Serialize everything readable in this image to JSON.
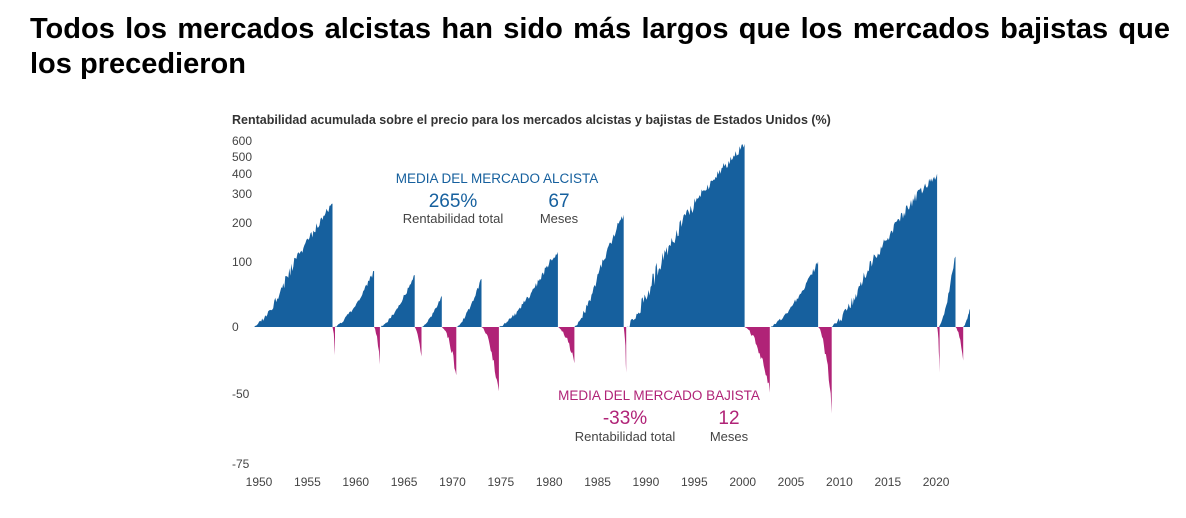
{
  "headline": "Todos los mercados alcistas han sido más largos que los mercados bajistas que los precedieron",
  "chart_data": {
    "type": "area",
    "title": "Rentabilidad acumulada sobre el precio para los mercados alcistas y bajistas de Estados Unidos (%)",
    "y_scale": "non-linear (compressed upper range)",
    "y_ticks": [
      600,
      500,
      400,
      300,
      200,
      100,
      0,
      -50,
      -75
    ],
    "x_ticks": [
      1950,
      1955,
      1960,
      1965,
      1970,
      1975,
      1980,
      1985,
      1990,
      1995,
      2000,
      2005,
      2010,
      2015,
      2020
    ],
    "xlim": [
      1950,
      2023.5
    ],
    "ylim": [
      -75,
      600
    ],
    "colors": {
      "bull": "#16609e",
      "bear": "#b02377"
    },
    "bull_markets": [
      {
        "start": 1949.5,
        "end": 1957.6,
        "peak": 267
      },
      {
        "start": 1957.8,
        "end": 1961.9,
        "peak": 86
      },
      {
        "start": 1962.5,
        "end": 1966.1,
        "peak": 80
      },
      {
        "start": 1966.8,
        "end": 1968.9,
        "peak": 48
      },
      {
        "start": 1970.4,
        "end": 1973.0,
        "peak": 74
      },
      {
        "start": 1974.8,
        "end": 1980.9,
        "peak": 126
      },
      {
        "start": 1982.6,
        "end": 1987.7,
        "peak": 229
      },
      {
        "start": 1987.9,
        "end": 2000.2,
        "peak": 582
      },
      {
        "start": 2002.8,
        "end": 2007.8,
        "peak": 101
      },
      {
        "start": 2009.2,
        "end": 2020.1,
        "peak": 401
      },
      {
        "start": 2020.3,
        "end": 2022.0,
        "peak": 114
      },
      {
        "start": 2022.8,
        "end": 2023.5,
        "peak": 28
      }
    ],
    "bear_markets": [
      {
        "start": 1957.6,
        "end": 1957.8,
        "trough": -21
      },
      {
        "start": 1961.9,
        "end": 1962.5,
        "trough": -28
      },
      {
        "start": 1966.1,
        "end": 1966.8,
        "trough": -22
      },
      {
        "start": 1968.9,
        "end": 1970.4,
        "trough": -36
      },
      {
        "start": 1973.0,
        "end": 1974.8,
        "trough": -48
      },
      {
        "start": 1980.9,
        "end": 1982.6,
        "trough": -27
      },
      {
        "start": 1987.7,
        "end": 1987.9,
        "trough": -34
      },
      {
        "start": 2000.2,
        "end": 2002.8,
        "trough": -49
      },
      {
        "start": 2007.8,
        "end": 2009.2,
        "trough": -57
      },
      {
        "start": 2020.1,
        "end": 2020.3,
        "trough": -34
      },
      {
        "start": 2022.0,
        "end": 2022.8,
        "trough": -25
      }
    ],
    "annotations": {
      "bull": {
        "title": "MEDIA DEL MERCADO ALCISTA",
        "return_value": "265%",
        "return_label": "Rentabilidad total",
        "months_value": "67",
        "months_label": "Meses"
      },
      "bear": {
        "title": "MEDIA DEL MERCADO BAJISTA",
        "return_value": "-33%",
        "return_label": "Rentabilidad total",
        "months_value": "12",
        "months_label": "Meses"
      }
    }
  }
}
